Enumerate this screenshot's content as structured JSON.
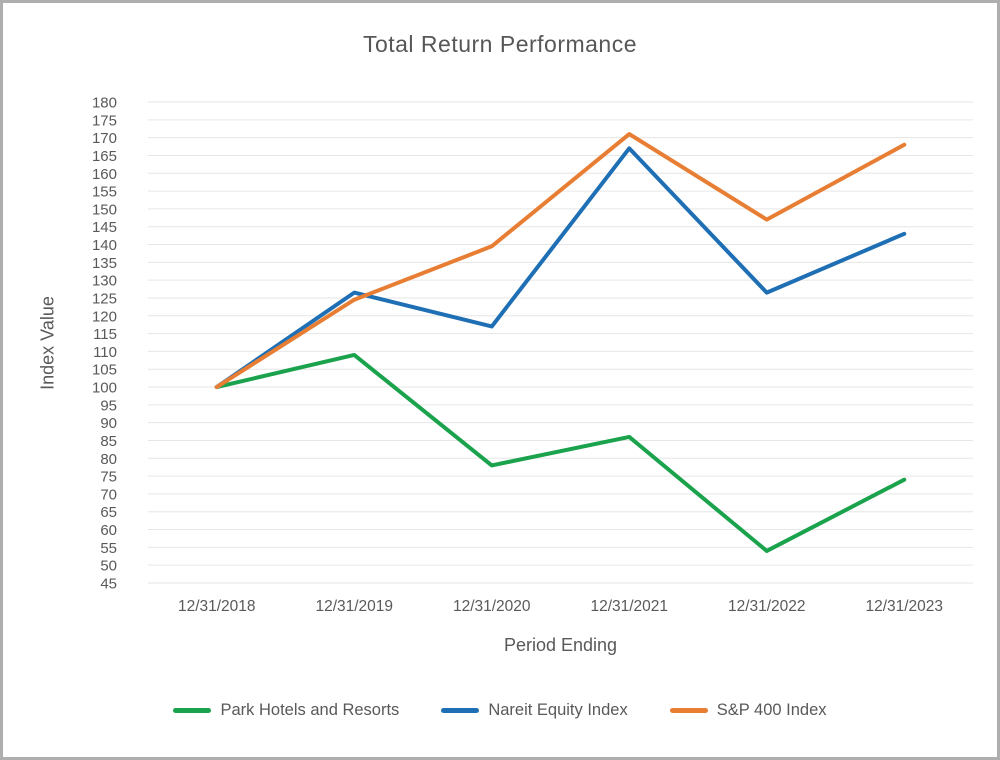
{
  "window": {
    "background": "#ffffff",
    "border_color": "#aeaeae",
    "text_color": "#595959",
    "grid_color": "#e6e6e6"
  },
  "chart_data": {
    "type": "line",
    "title": "Total Return Performance",
    "xlabel": "Period Ending",
    "ylabel": "Index Value",
    "categories": [
      "12/31/2018",
      "12/31/2019",
      "12/31/2020",
      "12/31/2021",
      "12/31/2022",
      "12/31/2023"
    ],
    "series": [
      {
        "name": "Park Hotels and Resorts",
        "color": "#1aa34c",
        "values": [
          100,
          109,
          78,
          86,
          54,
          74
        ]
      },
      {
        "name": "Nareit Equity Index",
        "color": "#1f6fb5",
        "values": [
          100,
          126.5,
          117,
          167,
          126.5,
          143
        ]
      },
      {
        "name": "S&P 400 Index",
        "color": "#e87e33",
        "values": [
          100,
          124.5,
          139.5,
          171,
          147,
          168
        ]
      }
    ],
    "ylim": [
      45,
      180
    ],
    "ytick_step": 5,
    "grid": true,
    "legend_position": "bottom",
    "line_width": 4
  }
}
